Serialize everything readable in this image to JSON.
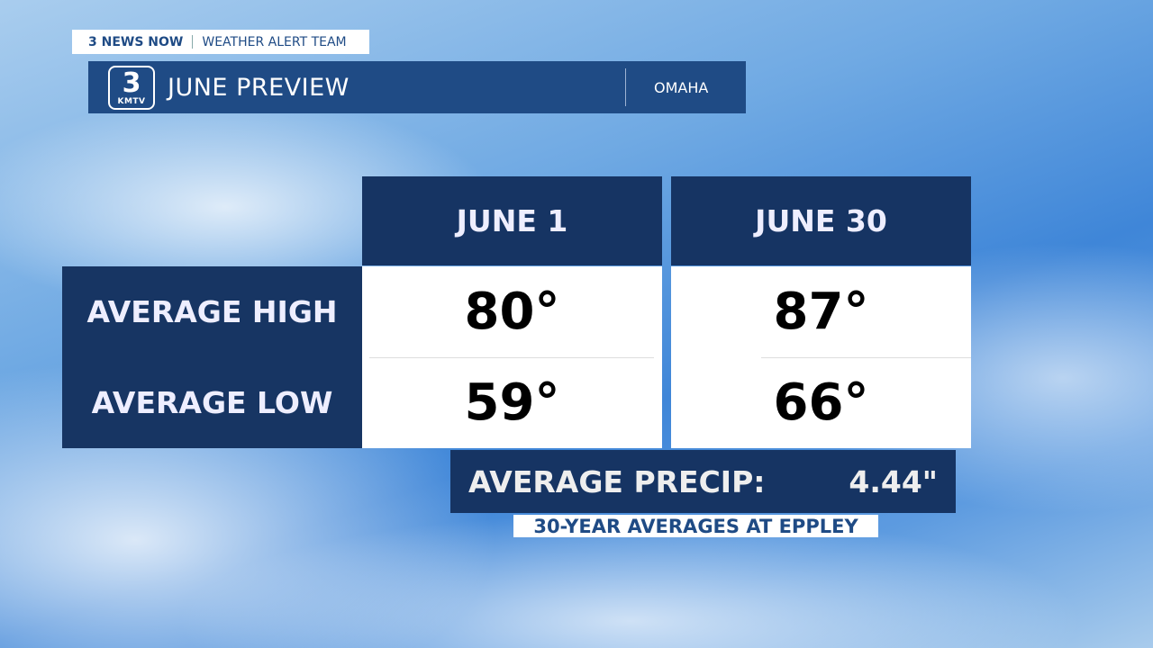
{
  "header": {
    "brand": "3 NEWS NOW",
    "team": "WEATHER ALERT TEAM",
    "title": "JUNE PREVIEW",
    "location": "OMAHA",
    "logo": {
      "number": "3",
      "callsign": "KMTV"
    }
  },
  "table": {
    "columns": [
      "JUNE 1",
      "JUNE 30"
    ],
    "rows": [
      {
        "label": "AVERAGE HIGH",
        "values": [
          "80°",
          "87°"
        ]
      },
      {
        "label": "AVERAGE LOW",
        "values": [
          "59°",
          "66°"
        ]
      }
    ]
  },
  "precip": {
    "label": "AVERAGE PRECIP:",
    "value": "4.44\""
  },
  "footnote": "30-YEAR AVERAGES AT EPPLEY",
  "colors": {
    "navy": "#163463",
    "title_bar": "#1f4b85"
  }
}
